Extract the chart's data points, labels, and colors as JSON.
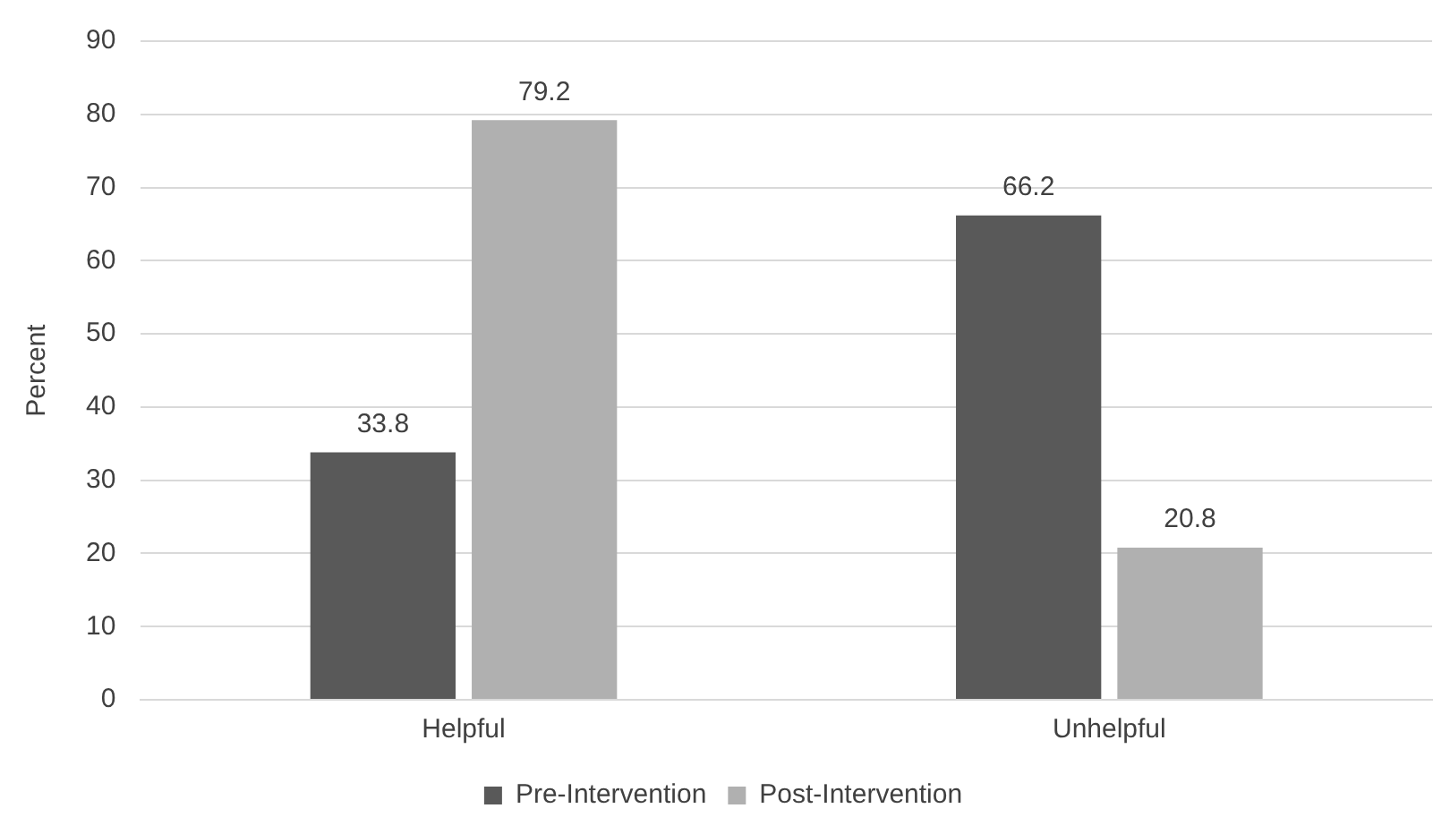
{
  "chart_data": {
    "type": "bar",
    "ylabel": "Percent",
    "categories": [
      "Helpful",
      "Unhelpful"
    ],
    "series": [
      {
        "name": "Pre-Intervention",
        "color": "#595959",
        "values": [
          33.8,
          66.2
        ]
      },
      {
        "name": "Post-Intervention",
        "color": "#b0b0b0",
        "values": [
          79.2,
          20.8
        ]
      }
    ],
    "ylim": [
      0,
      90
    ],
    "yticks": [
      0,
      10,
      20,
      30,
      40,
      50,
      60,
      70,
      80,
      90
    ],
    "grid": "y",
    "legend": "bottom",
    "data_labels": true
  }
}
